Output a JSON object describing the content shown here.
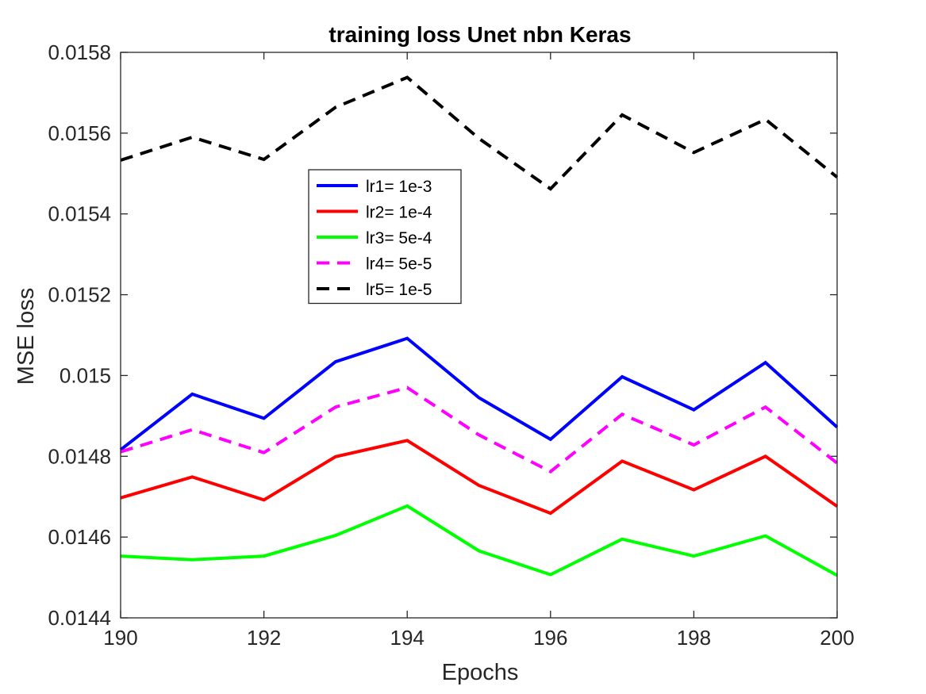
{
  "chart_data": {
    "type": "line",
    "title": "training loss Unet nbn Keras",
    "xlabel": "Epochs",
    "ylabel": "MSE loss",
    "xlim": [
      190,
      200
    ],
    "ylim": [
      0.0144,
      0.0158
    ],
    "xticks": [
      190,
      192,
      194,
      196,
      198,
      200
    ],
    "yticks": [
      0.0144,
      0.0146,
      0.0148,
      0.015,
      0.0152,
      0.0154,
      0.0156,
      0.0158
    ],
    "ytick_labels": [
      "0.0144",
      "0.0146",
      "0.0148",
      "0.015",
      "0.0152",
      "0.0154",
      "0.0156",
      "0.0158"
    ],
    "grid": false,
    "legend_position": "upper-center-left",
    "x": [
      190,
      191,
      192,
      193,
      194,
      195,
      196,
      197,
      198,
      199,
      200
    ],
    "series": [
      {
        "name": "lr1= 1e-3",
        "color": "#0000ff",
        "dash": "solid",
        "values": [
          0.014816,
          0.014954,
          0.014894,
          0.015034,
          0.015092,
          0.014945,
          0.014842,
          0.014997,
          0.014915,
          0.015032,
          0.014872
        ]
      },
      {
        "name": "lr2= 1e-4",
        "color": "#ff0000",
        "dash": "solid",
        "values": [
          0.014697,
          0.014749,
          0.014692,
          0.014799,
          0.014839,
          0.014728,
          0.014659,
          0.014788,
          0.014717,
          0.0148,
          0.014676
        ]
      },
      {
        "name": "lr3= 5e-4",
        "color": "#00ff00",
        "dash": "solid",
        "values": [
          0.014553,
          0.014544,
          0.014553,
          0.014604,
          0.014677,
          0.014566,
          0.014507,
          0.014595,
          0.014553,
          0.014603,
          0.014505
        ]
      },
      {
        "name": "lr4= 5e-5",
        "color": "#ff00ff",
        "dash": "dashed",
        "values": [
          0.014811,
          0.014866,
          0.014809,
          0.014922,
          0.01497,
          0.014853,
          0.014762,
          0.014904,
          0.014828,
          0.014922,
          0.014783
        ]
      },
      {
        "name": "lr5= 1e-5",
        "color": "#000000",
        "dash": "dashed",
        "values": [
          0.015533,
          0.01559,
          0.015535,
          0.015664,
          0.015738,
          0.015587,
          0.015462,
          0.015645,
          0.015552,
          0.015634,
          0.015491
        ]
      }
    ]
  }
}
